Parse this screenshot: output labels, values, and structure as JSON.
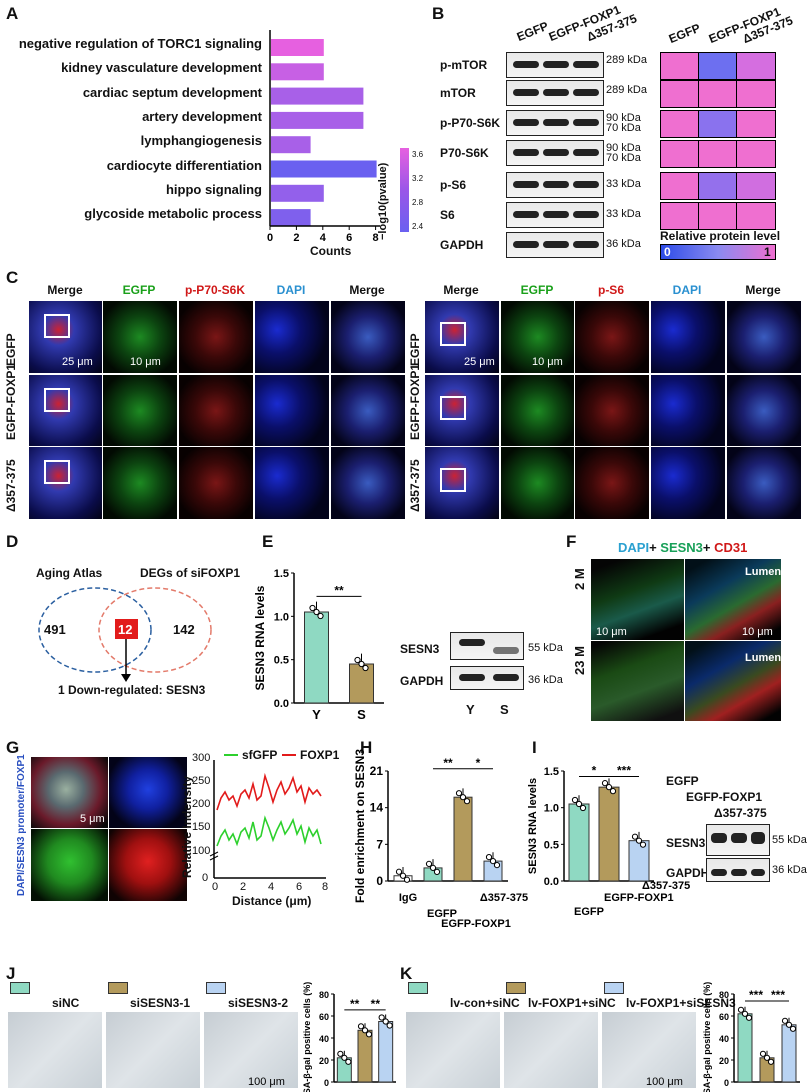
{
  "panels": {
    "A": "A",
    "B": "B",
    "C": "C",
    "D": "D",
    "E": "E",
    "F": "F",
    "G": "G",
    "H": "H",
    "I": "I",
    "J": "J",
    "K": "K"
  },
  "colors": {
    "egfp": "#8fd9c2",
    "foxp1": "#b39a5c",
    "d357": "#b9d3f2",
    "pink": "#ef6fd0",
    "purple": "#9a5be8",
    "blue": "#5b6cf0"
  },
  "panelA": {
    "terms": [
      "negative regulation of TORC1 signaling",
      "kidney vasculature development",
      "cardiac septum development",
      "artery development",
      "lymphangiogenesis",
      "cardiocyte differentiation",
      "hippo signaling",
      "glycoside metabolic process"
    ],
    "counts": [
      4,
      4,
      7,
      7,
      3,
      8,
      4,
      3
    ],
    "pval": [
      3.6,
      3.3,
      3.0,
      3.0,
      3.0,
      2.4,
      2.8,
      2.6
    ],
    "xlabel": "Counts",
    "xticks": [
      "0",
      "2",
      "4",
      "6",
      "8"
    ],
    "legend_title": "−log10(pvalue)",
    "legend_ticks": [
      "3.6",
      "3.2",
      "2.8",
      "2.4"
    ]
  },
  "panelB": {
    "cols": [
      "EGFP",
      "EGFP-FOXP1",
      "Δ357-375"
    ],
    "rows": [
      "p-mTOR",
      "mTOR",
      "p-P70-S6K",
      "P70-S6K",
      "p-S6",
      "S6",
      "GAPDH"
    ],
    "kda": [
      "289 kDa",
      "289 kDa",
      "90 kDa",
      "70 kDa",
      "90 kDa",
      "70 kDa",
      "33 kDa",
      "33 kDa",
      "36 kDa"
    ],
    "heat_title": "Relative protein level",
    "heat_min": "0",
    "heat_max": "1"
  },
  "panelC": {
    "left_cols": [
      "Merge",
      "EGFP",
      "p-P70-S6K",
      "DAPI",
      "Merge"
    ],
    "right_cols": [
      "Merge",
      "EGFP",
      "p-S6",
      "DAPI",
      "Merge"
    ],
    "rows": [
      "EGFP",
      "EGFP-FOXP1",
      "Δ357-375"
    ],
    "scale1": "25 μm",
    "scale2": "10 μm"
  },
  "panelD": {
    "left": "Aging Atlas",
    "right": "DEGs of siFOXP1",
    "n_left": "491",
    "n_mid": "12",
    "n_right": "142",
    "result": "1 Down-regulated: SESN3"
  },
  "panelE": {
    "ylabel": "SESN3 RNA levels",
    "cats": [
      "Y",
      "S"
    ],
    "values": [
      1.05,
      0.45
    ],
    "sig": "**",
    "yticks": [
      "0.0",
      "0.5",
      "1.0",
      "1.5"
    ],
    "wb_rows": [
      "SESN3",
      "GAPDH"
    ],
    "wb_kda": [
      "55 kDa",
      "36 kDa"
    ],
    "wb_cols": [
      "Y",
      "S"
    ]
  },
  "panelF": {
    "title_dapi": "DAPI",
    "title_sesn3": "SESN3",
    "title_cd31": "CD31",
    "plus": "+",
    "rows": [
      "2 M",
      "23 M"
    ],
    "lumen": "Lumen",
    "scale": "10 μm"
  },
  "panelG": {
    "side_label": "DAPI/SESN3 promoter/FOXP1",
    "scale": "5 μm",
    "legend": [
      "sfGFP",
      "FOXP1"
    ],
    "ylabel": "Relative Indensity",
    "xlabel": "Distance (μm)",
    "yticks": [
      "300",
      "250",
      "200",
      "150",
      "100",
      "0"
    ],
    "xticks": [
      "0",
      "2",
      "4",
      "6",
      "8"
    ]
  },
  "panelH": {
    "ylabel": "Fold enrichment on SESN3",
    "cats": [
      "IgG",
      "EGFP",
      "EGFP-FOXP1",
      "Δ357-375"
    ],
    "values": [
      1.0,
      2.5,
      16.0,
      3.8
    ],
    "sig": [
      "**",
      "*"
    ],
    "yticks": [
      "0",
      "7",
      "14",
      "21"
    ]
  },
  "panelI": {
    "ylabel": "SESN3 RNA levels",
    "cats": [
      "EGFP",
      "EGFP-FOXP1",
      "Δ357-375"
    ],
    "values": [
      1.05,
      1.28,
      0.55
    ],
    "sig": [
      "*",
      "***"
    ],
    "yticks": [
      "0.0",
      "0.5",
      "1.0",
      "1.5"
    ],
    "wb_cols": [
      "EGFP",
      "EGFP-FOXP1",
      "Δ357-375"
    ],
    "wb_rows": [
      "SESN3",
      "GAPDH"
    ],
    "wb_kda": [
      "55 kDa",
      "36 kDa"
    ]
  },
  "panelJ": {
    "groups": [
      "siNC",
      "siSESN3-1",
      "siSESN3-2"
    ],
    "values": [
      22,
      47,
      55
    ],
    "ylabel": "SA-β-gal positive cells (%)",
    "sig": [
      "**",
      "**"
    ],
    "yticks": [
      "0",
      "20",
      "40",
      "60",
      "80"
    ],
    "scale": "100 μm"
  },
  "panelK": {
    "groups": [
      "lv-con+siNC",
      "lv-FOXP1+siNC",
      "lv-FOXP1+siSESN3"
    ],
    "values": [
      62,
      22,
      52
    ],
    "ylabel": "SA-β-gal positive cells (%)",
    "sig": [
      "***",
      "***"
    ],
    "yticks": [
      "0",
      "20",
      "40",
      "60",
      "80"
    ],
    "scale": "100 μm"
  }
}
